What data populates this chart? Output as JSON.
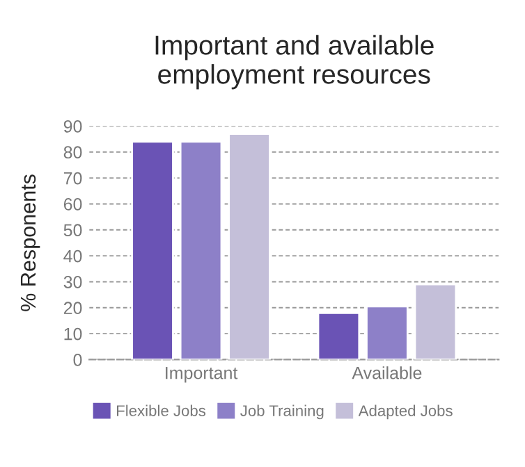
{
  "chart_data": {
    "type": "bar",
    "title": "Important and available\nemployment resources",
    "ylabel": "% Responents",
    "categories": [
      "Important",
      "Available"
    ],
    "series": [
      {
        "name": "Flexible Jobs",
        "color": "#6a53b5",
        "values": [
          84,
          18
        ]
      },
      {
        "name": "Job Training",
        "color": "#8d80c8",
        "values": [
          84,
          20.5
        ]
      },
      {
        "name": "Adapted Jobs",
        "color": "#c4bfd9",
        "values": [
          87,
          29
        ]
      }
    ],
    "ylim": [
      0,
      90
    ],
    "yticks": [
      0,
      10,
      20,
      30,
      40,
      50,
      60,
      70,
      80,
      90
    ],
    "grid": "y",
    "legend": "bottom"
  }
}
